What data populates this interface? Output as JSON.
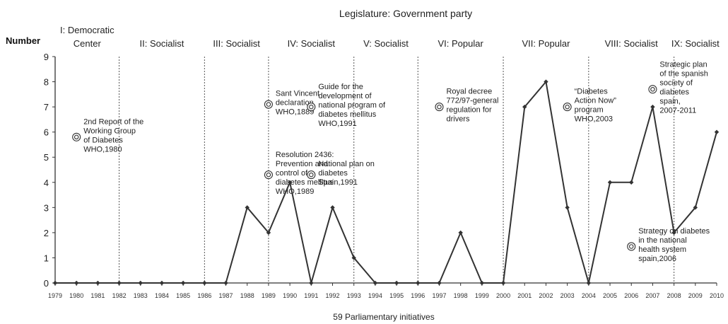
{
  "chart_data": {
    "type": "line",
    "title": "Legislature: Government party",
    "ylabel": "Number",
    "xlabel": "59 Parliamentary initiatives",
    "ylim": [
      0,
      9
    ],
    "yticks": [
      0,
      1,
      2,
      3,
      4,
      5,
      6,
      7,
      8,
      9
    ],
    "x": [
      "1979",
      "1980",
      "1981",
      "1982",
      "1983",
      "1984",
      "1985",
      "1986",
      "1987",
      "1988",
      "1989",
      "1990",
      "1991",
      "1992",
      "1993",
      "1994",
      "1995",
      "1996",
      "1997",
      "1998",
      "1999",
      "2000",
      "2001",
      "2002",
      "2003",
      "2004",
      "2005",
      "2006",
      "2007",
      "2008",
      "2009",
      "2010"
    ],
    "series": [
      {
        "values": [
          0,
          0,
          0,
          0,
          0,
          0,
          0,
          0,
          0,
          3,
          2,
          4,
          0,
          3,
          1,
          0,
          0,
          0,
          0,
          2,
          0,
          0,
          7,
          8,
          3,
          0,
          4,
          4,
          7,
          2,
          3,
          6
        ]
      }
    ],
    "grid": false,
    "line_color": "#333333",
    "legislatures": [
      {
        "label_lines": [
          "I: Democratic",
          "Center"
        ],
        "start": "1979",
        "end": "1982"
      },
      {
        "label_lines": [
          "II: Socialist"
        ],
        "start": "1982",
        "end": "1986"
      },
      {
        "label_lines": [
          "III: Socialist"
        ],
        "start": "1986",
        "end": "1989"
      },
      {
        "label_lines": [
          "IV: Socialist"
        ],
        "start": "1989",
        "end": "1993"
      },
      {
        "label_lines": [
          "V: Socialist"
        ],
        "start": "1993",
        "end": "1996"
      },
      {
        "label_lines": [
          "VI: Popular"
        ],
        "start": "1996",
        "end": "2000"
      },
      {
        "label_lines": [
          "VII: Popular"
        ],
        "start": "2000",
        "end": "2004"
      },
      {
        "label_lines": [
          "VIII: Socialist"
        ],
        "start": "2004",
        "end": "2008"
      },
      {
        "label_lines": [
          "IX: Socialist"
        ],
        "start": "2008",
        "end": "2010"
      }
    ],
    "legislature_boundaries": [
      "1982",
      "1986",
      "1989",
      "1993",
      "1996",
      "2000",
      "2004",
      "2008"
    ],
    "annotations": [
      {
        "lines": [
          "2nd Report of the",
          "Working Group",
          "of Diabetes",
          "WHO,1980"
        ],
        "x": "1980",
        "y": 5.8
      },
      {
        "lines": [
          "Sant Vincent",
          "declaration",
          "WHO,1889"
        ],
        "x": "1989",
        "y": 7.1
      },
      {
        "lines": [
          "Resolution 2436:",
          "Prevention and",
          "control of",
          "diabetes mellitus",
          "WHO,1989"
        ],
        "x": "1989",
        "y": 4.3
      },
      {
        "lines": [
          "Guide for the",
          "development of",
          "national program of",
          "diabetes mellitus",
          "WHO,1991"
        ],
        "x": "1991",
        "y": 7.0
      },
      {
        "lines": [
          "National plan on",
          "diabetes",
          "Spain,1991"
        ],
        "x": "1991",
        "y": 4.3
      },
      {
        "lines": [
          "Royal decree",
          "772/97-general",
          "regulation for",
          "drivers"
        ],
        "x": "1997",
        "y": 7.0
      },
      {
        "lines": [
          "“Diabetes",
          "Action Now”",
          "program",
          "WHO,2003"
        ],
        "x": "2003",
        "y": 7.0
      },
      {
        "lines": [
          "Strategic plan",
          "of the spanish",
          "society of",
          "diabetes",
          "spain,",
          "2007-2011"
        ],
        "x": "2007",
        "y": 7.7
      },
      {
        "lines": [
          "Strategy on diabetes",
          "in the national",
          "health system",
          "spain,2006"
        ],
        "x": "2006",
        "y": 1.45
      }
    ]
  }
}
